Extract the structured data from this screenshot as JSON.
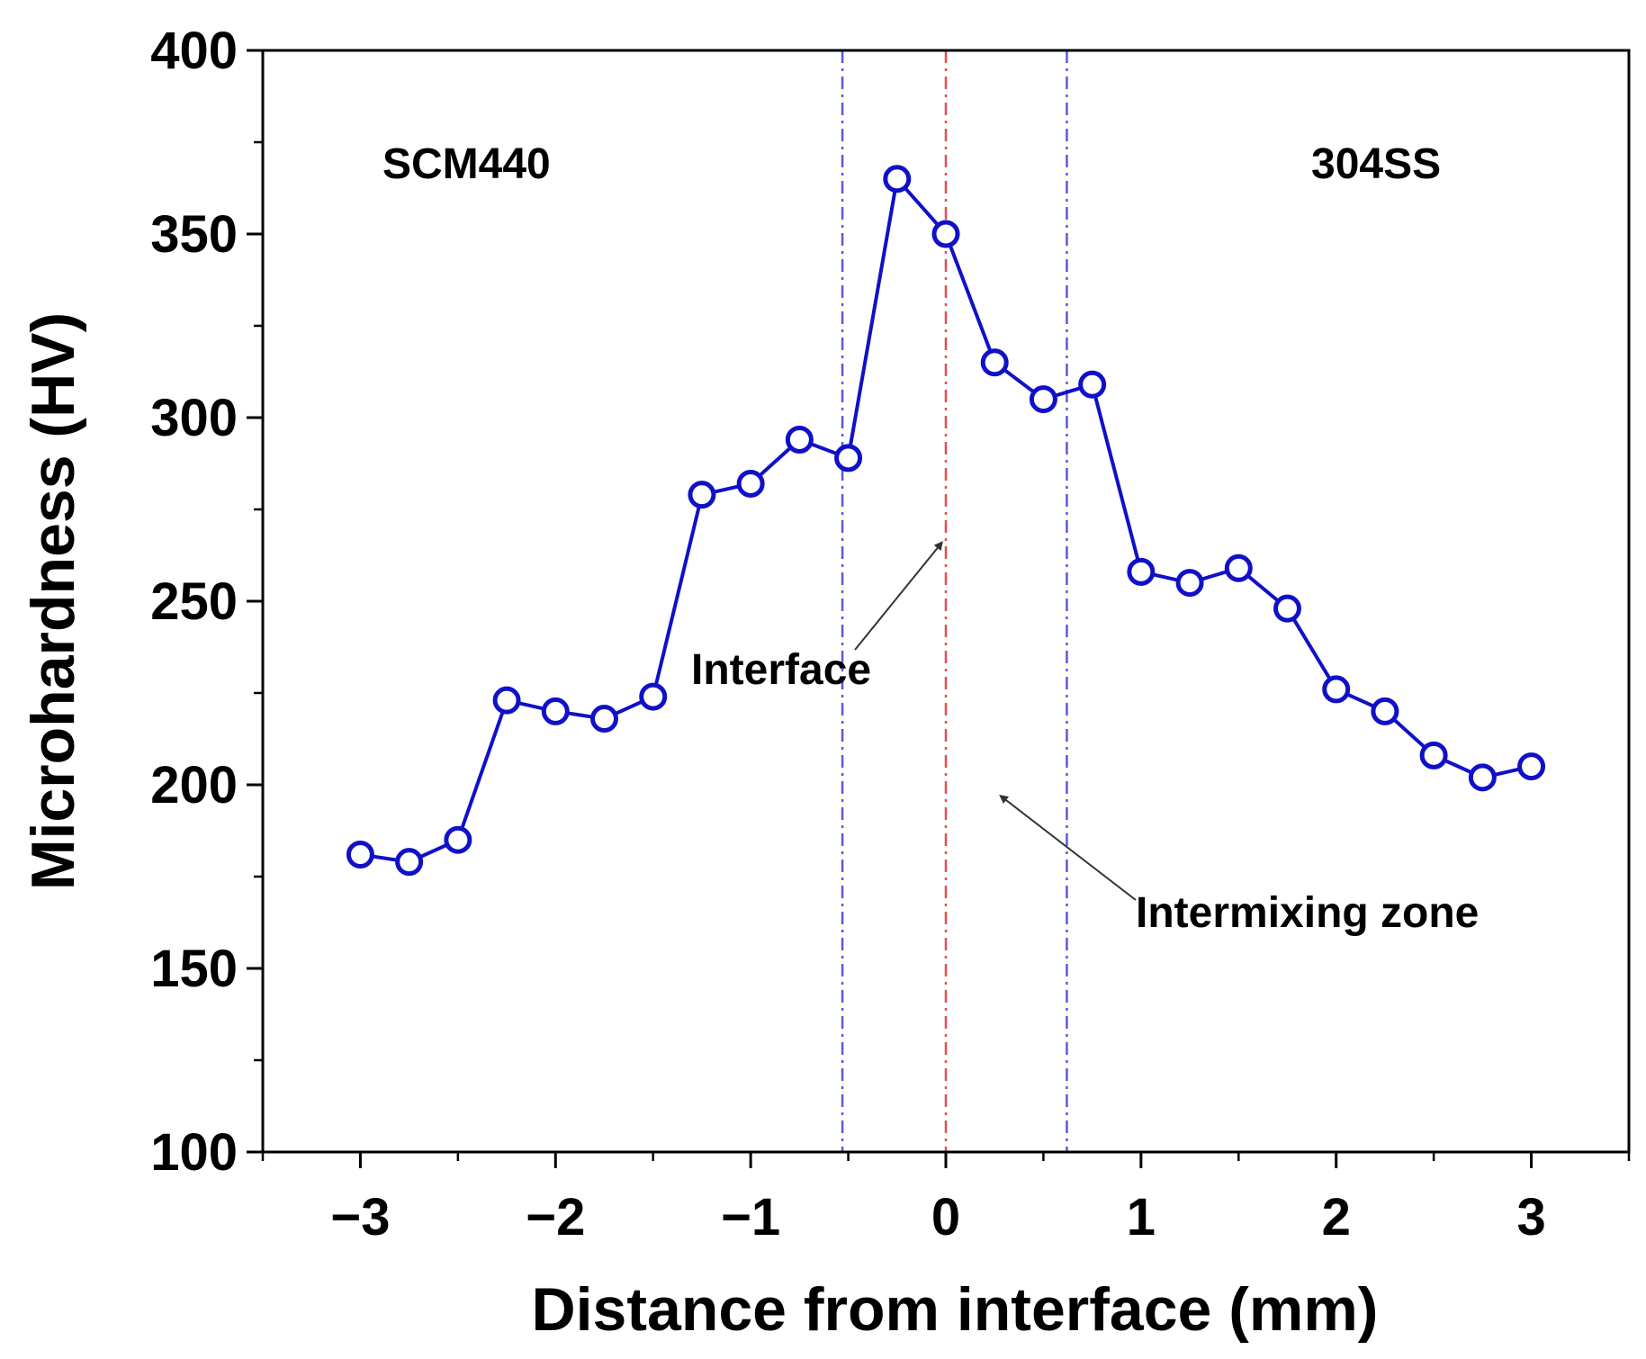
{
  "chart_data": {
    "type": "line",
    "title": "",
    "xlabel": "Distance from interface (mm)",
    "ylabel": "Microhardness (HV)",
    "xlim": [
      -3.5,
      3.5
    ],
    "ylim": [
      100,
      400
    ],
    "x_ticks": [
      -3,
      -2,
      -1,
      0,
      1,
      2,
      3
    ],
    "x_tick_labels": [
      "−3",
      "−2",
      "−1",
      "0",
      "1",
      "2",
      "3"
    ],
    "y_ticks": [
      100,
      150,
      200,
      250,
      300,
      350,
      400
    ],
    "y_tick_labels": [
      "100",
      "150",
      "200",
      "250",
      "300",
      "350",
      "400"
    ],
    "grid": false,
    "series": [
      {
        "name": "Microhardness",
        "color": "#1010c8",
        "marker": "open-circle",
        "x": [
          -3,
          -2.75,
          -2.5,
          -2.25,
          -2,
          -1.75,
          -1.5,
          -1.25,
          -1,
          -0.75,
          -0.5,
          -0.25,
          0,
          0.25,
          0.5,
          0.75,
          1,
          1.25,
          1.5,
          1.75,
          2,
          2.25,
          2.5,
          2.75,
          3
        ],
        "y": [
          181,
          179,
          185,
          223,
          220,
          218,
          224,
          279,
          282,
          294,
          289,
          365,
          350,
          315,
          305,
          309,
          258,
          255,
          259,
          248,
          226,
          220,
          208,
          202,
          205
        ]
      }
    ],
    "reference_lines": [
      {
        "name": "intermixing-left",
        "x": -0.53,
        "color": "#5a5ad8",
        "style": "dash-dot"
      },
      {
        "name": "interface",
        "x": 0,
        "color": "#e05050",
        "style": "dash-dot"
      },
      {
        "name": "intermixing-right",
        "x": 0.62,
        "color": "#5a5ad8",
        "style": "dash-dot"
      }
    ],
    "region_labels": {
      "left": "SCM440",
      "right": "304SS"
    },
    "annotations": [
      {
        "text": "Interface",
        "target_x": -0.02,
        "target_y": 266
      },
      {
        "text": "Intermixing zone",
        "target_x": 0.28,
        "target_y": 197
      }
    ]
  }
}
